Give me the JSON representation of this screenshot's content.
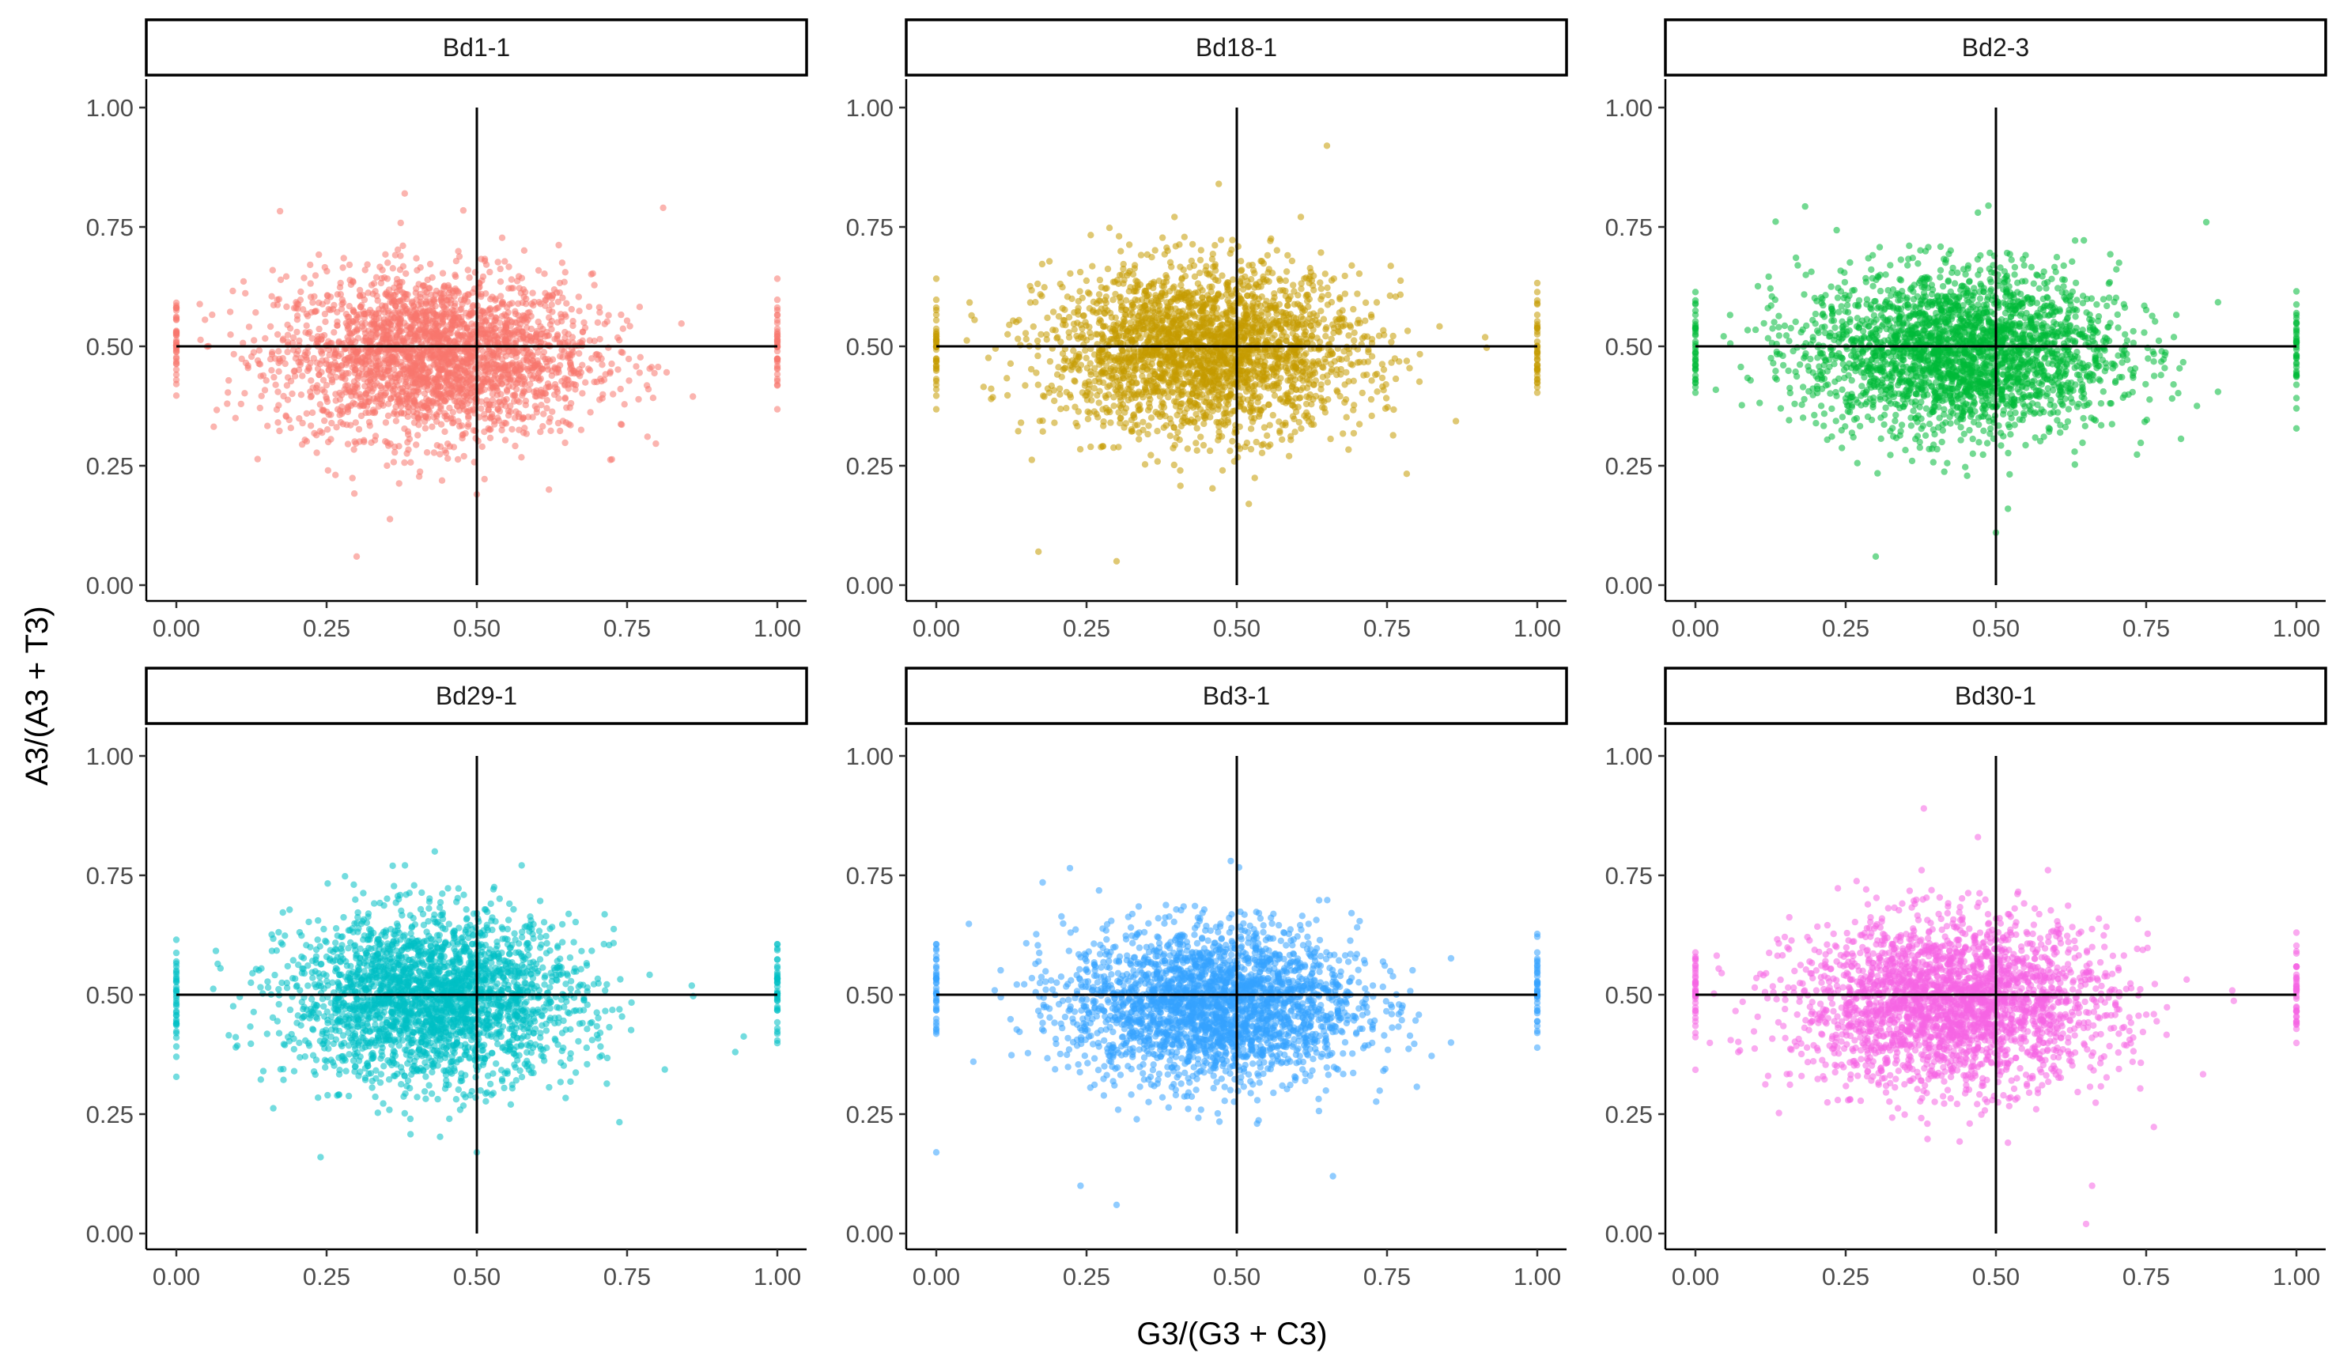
{
  "chart_data": {
    "type": "scatter",
    "layout": "facet_wrap",
    "xlabel": "G3/(G3 + C3)",
    "ylabel": "A3/(A3 + T3)",
    "xlim": [
      0,
      1
    ],
    "ylim": [
      0,
      1
    ],
    "x_ticks": [
      "0.00",
      "0.25",
      "0.50",
      "0.75",
      "1.00"
    ],
    "y_ticks": [
      "0.00",
      "0.25",
      "0.50",
      "0.75",
      "1.00"
    ],
    "reference_lines": {
      "vertical_x": 0.5,
      "horizontal_y": 0.5
    },
    "panels": [
      {
        "label": "Bd1-1",
        "color": "#F8766D",
        "center": [
          0.43,
          0.48
        ],
        "spread": [
          0.13,
          0.085
        ],
        "outliers": [
          [
            0.3,
            0.06
          ],
          [
            0.38,
            0.82
          ],
          [
            0.81,
            0.79
          ],
          [
            0.5,
            0.19
          ],
          [
            0.62,
            0.2
          ]
        ]
      },
      {
        "label": "Bd18-1",
        "color": "#C49A00",
        "center": [
          0.45,
          0.49
        ],
        "spread": [
          0.13,
          0.085
        ],
        "outliers": [
          [
            0.3,
            0.05
          ],
          [
            0.17,
            0.07
          ],
          [
            0.65,
            0.92
          ],
          [
            0.47,
            0.84
          ],
          [
            0.52,
            0.17
          ]
        ]
      },
      {
        "label": "Bd2-3",
        "color": "#00BA38",
        "center": [
          0.44,
          0.49
        ],
        "spread": [
          0.13,
          0.085
        ],
        "outliers": [
          [
            0.3,
            0.06
          ],
          [
            0.5,
            0.11
          ],
          [
            0.47,
            0.78
          ],
          [
            0.85,
            0.76
          ],
          [
            0.52,
            0.16
          ]
        ]
      },
      {
        "label": "Bd29-1",
        "color": "#00BFC4",
        "center": [
          0.43,
          0.49
        ],
        "spread": [
          0.12,
          0.085
        ],
        "outliers": [
          [
            0.24,
            0.16
          ],
          [
            0.43,
            0.8
          ],
          [
            0.5,
            0.17
          ],
          [
            0.93,
            0.38
          ],
          [
            0.36,
            0.77
          ]
        ]
      },
      {
        "label": "Bd3-1",
        "color": "#35A2FF",
        "center": [
          0.46,
          0.48
        ],
        "spread": [
          0.12,
          0.08
        ],
        "outliers": [
          [
            0.3,
            0.06
          ],
          [
            0.24,
            0.1
          ],
          [
            0.0,
            0.17
          ],
          [
            0.49,
            0.78
          ],
          [
            0.66,
            0.12
          ]
        ]
      },
      {
        "label": "Bd30-1",
        "color": "#F564E3",
        "center": [
          0.43,
          0.48
        ],
        "spread": [
          0.13,
          0.085
        ],
        "outliers": [
          [
            0.38,
            0.89
          ],
          [
            0.65,
            0.02
          ],
          [
            0.47,
            0.83
          ],
          [
            0.66,
            0.1
          ],
          [
            0.52,
            0.19
          ]
        ]
      }
    ]
  }
}
